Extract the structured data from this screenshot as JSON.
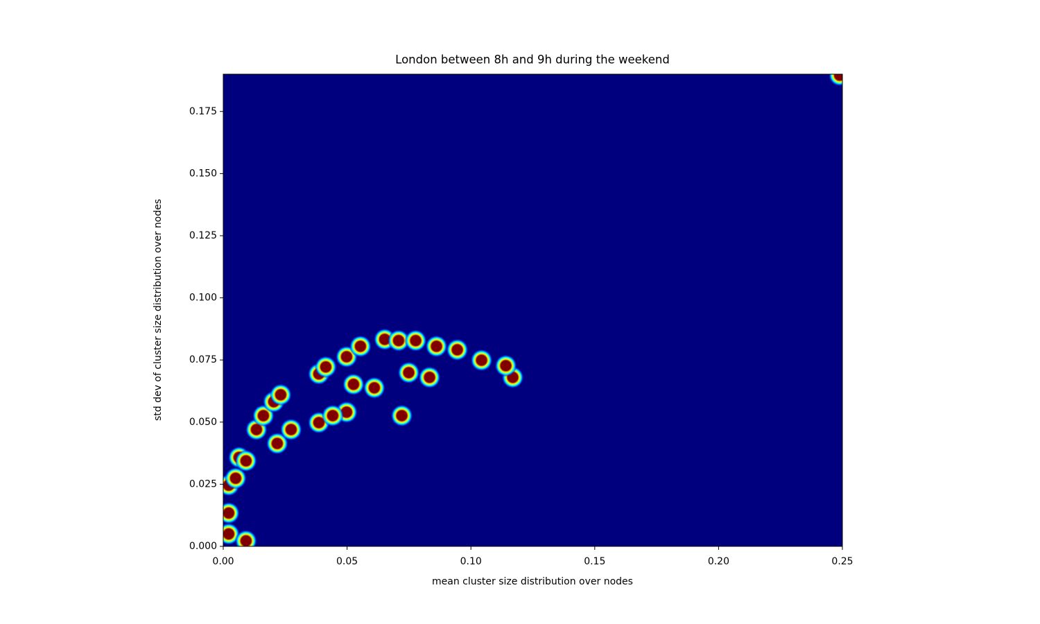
{
  "chart_data": {
    "type": "density",
    "title": "London between 8h and 9h during the weekend",
    "xlabel": "mean cluster size distribution over nodes",
    "ylabel": "std dev of cluster size distribution over nodes",
    "x": [
      0.0022,
      0.0022,
      0.005,
      0.0064,
      0.0092,
      0.0134,
      0.0162,
      0.0204,
      0.0232,
      0.0218,
      0.0274,
      0.0386,
      0.0414,
      0.0498,
      0.0554,
      0.0526,
      0.061,
      0.0652,
      0.0708,
      0.0777,
      0.0861,
      0.0749,
      0.0833,
      0.0386,
      0.0498,
      0.0442,
      0.0721,
      0.0945,
      0.1043,
      0.1169,
      0.1141,
      0.0022,
      0.0092,
      0.2489
    ],
    "y": [
      0.0134,
      0.0246,
      0.0274,
      0.0358,
      0.0344,
      0.047,
      0.0526,
      0.0582,
      0.061,
      0.0414,
      0.047,
      0.0694,
      0.0722,
      0.0763,
      0.0805,
      0.0652,
      0.0638,
      0.0833,
      0.0828,
      0.0828,
      0.0805,
      0.0699,
      0.068,
      0.0498,
      0.054,
      0.0526,
      0.0526,
      0.0791,
      0.0749,
      0.068,
      0.0727,
      0.005,
      0.0022,
      0.1896
    ],
    "color": "#800000",
    "background": "#00007f",
    "xlim": [
      0,
      0.25
    ],
    "ylim": [
      0,
      0.19
    ],
    "xticks": [
      {
        "value": 0,
        "label": "0.00"
      },
      0.05,
      {
        "value": 0.1,
        "label": "0.10"
      },
      0.15,
      {
        "value": 0.2,
        "label": "0.20"
      },
      0.25
    ],
    "yticks": [
      {
        "value": 0,
        "label": "0.000"
      },
      {
        "value": 0.025,
        "label": "0.025"
      },
      {
        "value": 0.05,
        "label": "0.050"
      },
      {
        "value": 0.075,
        "label": "0.075"
      },
      {
        "value": 0.1,
        "label": "0.100"
      },
      {
        "value": 0.125,
        "label": "0.125"
      },
      {
        "value": 0.15,
        "label": "0.150"
      },
      {
        "value": 0.175,
        "label": "0.175"
      }
    ]
  }
}
